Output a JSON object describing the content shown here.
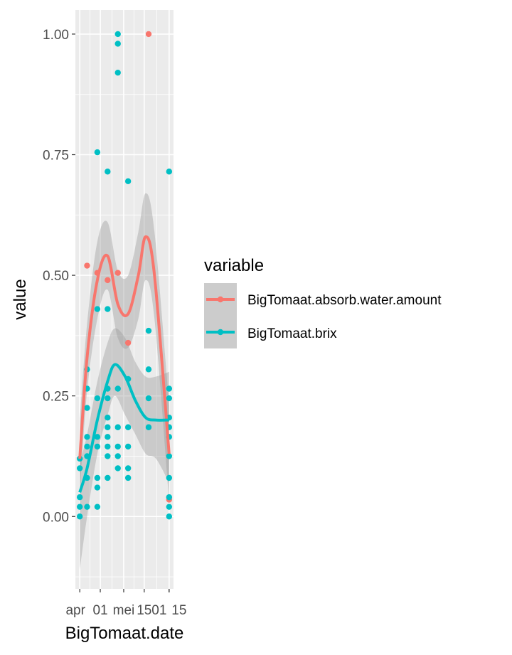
{
  "chart_data": {
    "type": "scatter",
    "xlabel": "BigTomaat.date",
    "ylabel": "value",
    "x_tick_labels": [
      "apr",
      "01",
      "mei",
      "15",
      "01",
      "15"
    ],
    "y_tick_labels": [
      "0.00",
      "0.25",
      "0.50",
      "0.75",
      "1.00"
    ],
    "y_ticks": [
      0,
      0.25,
      0.5,
      0.75,
      1.0
    ],
    "ylim": [
      -0.15,
      1.05
    ],
    "xlim": [
      "2019-03-29",
      "2019-06-04"
    ],
    "grid": true,
    "smooth": "loess with gray confidence band",
    "legend": {
      "title": "variable",
      "placement": "right",
      "entries": [
        "BigTomaat.absorb.water.amount",
        "BigTomaat.brix"
      ]
    },
    "series": [
      {
        "name": "BigTomaat.absorb.water.amount",
        "color": "#F8766D",
        "points": [
          [
            "2019-04-06",
            0.52
          ],
          [
            "2019-04-13",
            0.505
          ],
          [
            "2019-04-20",
            0.49
          ],
          [
            "2019-04-27",
            0.505
          ],
          [
            "2019-05-04",
            0.36
          ],
          [
            "2019-05-18",
            1.0
          ],
          [
            "2019-06-01",
            0.035
          ]
        ],
        "smooth": [
          [
            "2019-04-01",
            0.12,
            0.05,
            0.2
          ],
          [
            "2019-04-06",
            0.33,
            0.26,
            0.4
          ],
          [
            "2019-04-13",
            0.49,
            0.41,
            0.57
          ],
          [
            "2019-04-20",
            0.54,
            0.47,
            0.61
          ],
          [
            "2019-04-27",
            0.44,
            0.37,
            0.51
          ],
          [
            "2019-05-04",
            0.42,
            0.35,
            0.5
          ],
          [
            "2019-05-11",
            0.5,
            0.41,
            0.59
          ],
          [
            "2019-05-16",
            0.58,
            0.49,
            0.67
          ],
          [
            "2019-05-22",
            0.5,
            0.41,
            0.59
          ],
          [
            "2019-06-01",
            0.13,
            0.03,
            0.23
          ]
        ]
      },
      {
        "name": "BigTomaat.brix",
        "color": "#00BFC4",
        "points": [
          [
            "2019-04-01",
            0.12
          ],
          [
            "2019-04-01",
            0.1
          ],
          [
            "2019-04-01",
            0.04
          ],
          [
            "2019-04-01",
            0.02
          ],
          [
            "2019-04-01",
            0.0
          ],
          [
            "2019-04-06",
            0.305
          ],
          [
            "2019-04-06",
            0.265
          ],
          [
            "2019-04-06",
            0.225
          ],
          [
            "2019-04-06",
            0.165
          ],
          [
            "2019-04-06",
            0.145
          ],
          [
            "2019-04-06",
            0.125
          ],
          [
            "2019-04-06",
            0.08
          ],
          [
            "2019-04-06",
            0.02
          ],
          [
            "2019-04-13",
            0.755
          ],
          [
            "2019-04-13",
            0.43
          ],
          [
            "2019-04-13",
            0.245
          ],
          [
            "2019-04-13",
            0.165
          ],
          [
            "2019-04-13",
            0.145
          ],
          [
            "2019-04-13",
            0.08
          ],
          [
            "2019-04-13",
            0.06
          ],
          [
            "2019-04-13",
            0.02
          ],
          [
            "2019-04-20",
            0.715
          ],
          [
            "2019-04-20",
            0.43
          ],
          [
            "2019-04-20",
            0.265
          ],
          [
            "2019-04-20",
            0.245
          ],
          [
            "2019-04-20",
            0.205
          ],
          [
            "2019-04-20",
            0.185
          ],
          [
            "2019-04-20",
            0.165
          ],
          [
            "2019-04-20",
            0.145
          ],
          [
            "2019-04-20",
            0.125
          ],
          [
            "2019-04-20",
            0.08
          ],
          [
            "2019-04-27",
            1.0
          ],
          [
            "2019-04-27",
            0.98
          ],
          [
            "2019-04-27",
            0.92
          ],
          [
            "2019-04-27",
            0.265
          ],
          [
            "2019-04-27",
            0.185
          ],
          [
            "2019-04-27",
            0.145
          ],
          [
            "2019-04-27",
            0.125
          ],
          [
            "2019-04-27",
            0.1
          ],
          [
            "2019-05-04",
            0.695
          ],
          [
            "2019-05-04",
            0.285
          ],
          [
            "2019-05-04",
            0.185
          ],
          [
            "2019-05-04",
            0.145
          ],
          [
            "2019-05-04",
            0.1
          ],
          [
            "2019-05-04",
            0.08
          ],
          [
            "2019-05-18",
            0.385
          ],
          [
            "2019-05-18",
            0.305
          ],
          [
            "2019-05-18",
            0.245
          ],
          [
            "2019-05-18",
            0.185
          ],
          [
            "2019-06-01",
            0.715
          ],
          [
            "2019-06-01",
            0.265
          ],
          [
            "2019-06-01",
            0.245
          ],
          [
            "2019-06-01",
            0.205
          ],
          [
            "2019-06-01",
            0.185
          ],
          [
            "2019-06-01",
            0.165
          ],
          [
            "2019-06-01",
            0.125
          ],
          [
            "2019-06-01",
            0.08
          ],
          [
            "2019-06-01",
            0.04
          ],
          [
            "2019-06-01",
            0.02
          ],
          [
            "2019-06-01",
            0.0
          ]
        ],
        "smooth": [
          [
            "2019-04-01",
            0.05,
            -0.11,
            0.11
          ],
          [
            "2019-04-06",
            0.1,
            0.0,
            0.17
          ],
          [
            "2019-04-13",
            0.2,
            0.13,
            0.28
          ],
          [
            "2019-04-20",
            0.28,
            0.21,
            0.36
          ],
          [
            "2019-04-25",
            0.315,
            0.25,
            0.39
          ],
          [
            "2019-05-02",
            0.29,
            0.21,
            0.37
          ],
          [
            "2019-05-09",
            0.24,
            0.17,
            0.32
          ],
          [
            "2019-05-16",
            0.205,
            0.13,
            0.29
          ],
          [
            "2019-05-23",
            0.2,
            0.12,
            0.29
          ],
          [
            "2019-06-01",
            0.2,
            0.07,
            0.3
          ]
        ]
      }
    ]
  }
}
